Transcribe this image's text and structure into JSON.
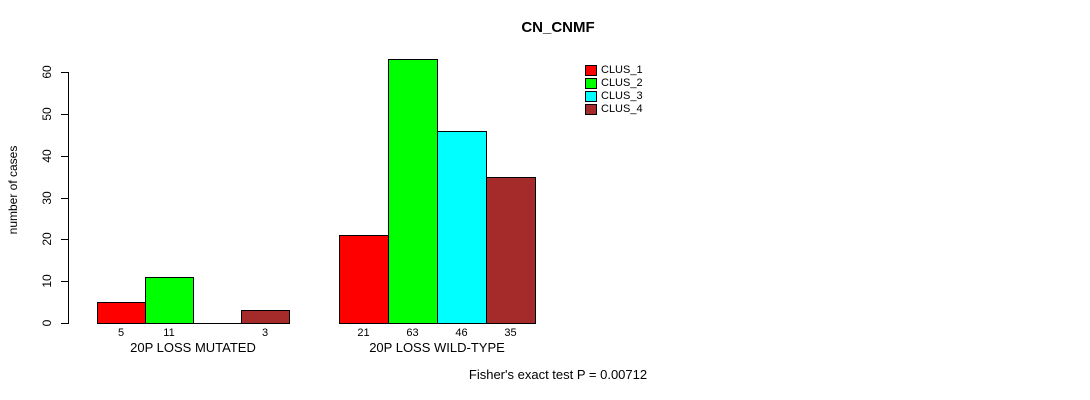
{
  "title": "CN_CNMF",
  "footer": "Fisher's exact test P = 0.00712",
  "chart_data": {
    "type": "bar",
    "title": "CN_CNMF",
    "xlabel": "",
    "ylabel": "number of cases",
    "ylim": [
      0,
      60
    ],
    "yticks": [
      0,
      10,
      20,
      30,
      40,
      50,
      60
    ],
    "grid": false,
    "legend_position": "top-right",
    "background": "#ffffff",
    "bar_border_color": "#000000",
    "categories": [
      "20P LOSS MUTATED",
      "20P LOSS WILD-TYPE"
    ],
    "series": [
      {
        "name": "CLUS_1",
        "color": "#ff0000",
        "values": [
          5,
          21
        ]
      },
      {
        "name": "CLUS_2",
        "color": "#00ff00",
        "values": [
          11,
          63
        ]
      },
      {
        "name": "CLUS_3",
        "color": "#00ffff",
        "values": [
          0,
          46
        ]
      },
      {
        "name": "CLUS_4",
        "color": "#a52a2a",
        "values": [
          3,
          35
        ]
      }
    ],
    "bar_value_labels": [
      [
        "5",
        "11",
        "",
        "3"
      ],
      [
        "21",
        "63",
        "46",
        "35"
      ]
    ],
    "annotation": "Fisher's exact test P = 0.00712"
  }
}
